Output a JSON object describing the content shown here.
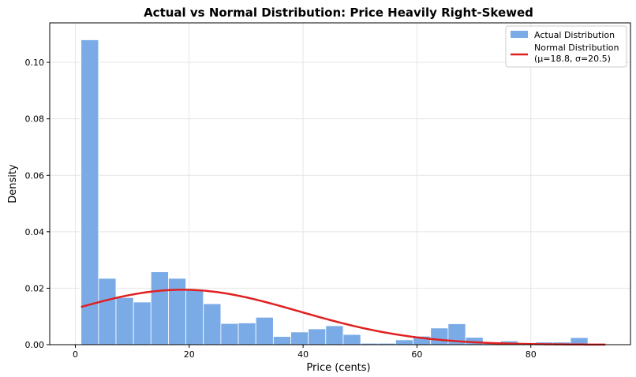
{
  "chart_data": {
    "type": "bar",
    "title": "Actual vs Normal Distribution: Price Heavily Right-Skewed",
    "xlabel": "Price (cents)",
    "ylabel": "Density",
    "xlim": [
      -4.5,
      97.5
    ],
    "ylim": [
      0,
      0.114
    ],
    "xticks": [
      0,
      20,
      40,
      60,
      80
    ],
    "xtick_labels": [
      "0",
      "20",
      "40",
      "60",
      "80"
    ],
    "yticks": [
      0.0,
      0.02,
      0.04,
      0.06,
      0.08,
      0.1
    ],
    "ytick_labels": [
      "0.00",
      "0.02",
      "0.04",
      "0.06",
      "0.08",
      "0.10"
    ],
    "grid": true,
    "legend_position": "top-right",
    "bin_start": 1.0,
    "bin_width": 3.07,
    "histogram": {
      "name": "Actual Distribution",
      "color": "#7aabe6",
      "values": [
        0.108,
        0.0235,
        0.0167,
        0.0151,
        0.0258,
        0.0235,
        0.0196,
        0.0145,
        0.0075,
        0.0077,
        0.0097,
        0.0029,
        0.0045,
        0.0056,
        0.0067,
        0.0036,
        0.0005,
        0.0005,
        0.0017,
        0.003,
        0.0059,
        0.0074,
        0.0026,
        0.0005,
        0.0013,
        0.0005,
        0.0009,
        0.0009,
        0.0025,
        0.0003
      ]
    },
    "normal_curve": {
      "name": "Normal Distribution",
      "label_line2": "(μ=18.8, σ=20.5)",
      "color": "#e02020",
      "mu": 18.8,
      "sigma": 20.5,
      "x_range": [
        1.0,
        93.1
      ]
    }
  }
}
